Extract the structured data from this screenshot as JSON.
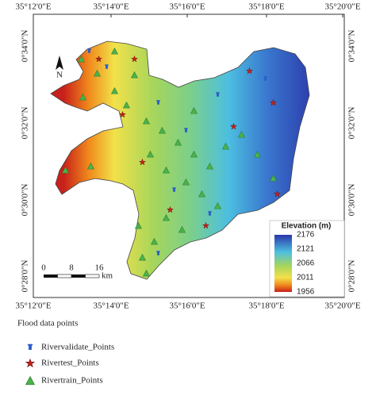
{
  "map": {
    "lon_labels": [
      "35°12'0\"E",
      "35°14'0\"E",
      "35°16'0\"E",
      "35°18'0\"E",
      "35°20'0\"E"
    ],
    "lat_labels": [
      "0°34'0\"N",
      "0°32'0\"N",
      "0°30'0\"N",
      "0°28'0\"N"
    ],
    "north": "N",
    "scale_bar": {
      "ticks": [
        0,
        8,
        16
      ],
      "unit": "km"
    },
    "elevation_legend": {
      "title": "Elevation (m)",
      "range": [
        1956,
        2176
      ],
      "ticks": [
        2176,
        2121,
        2066,
        2011,
        1956
      ]
    }
  },
  "legend": {
    "title": "Flood data points",
    "items": [
      "Rivervalidate_Points",
      "Rivertest_Points",
      "Rivertrain_Points"
    ]
  }
}
